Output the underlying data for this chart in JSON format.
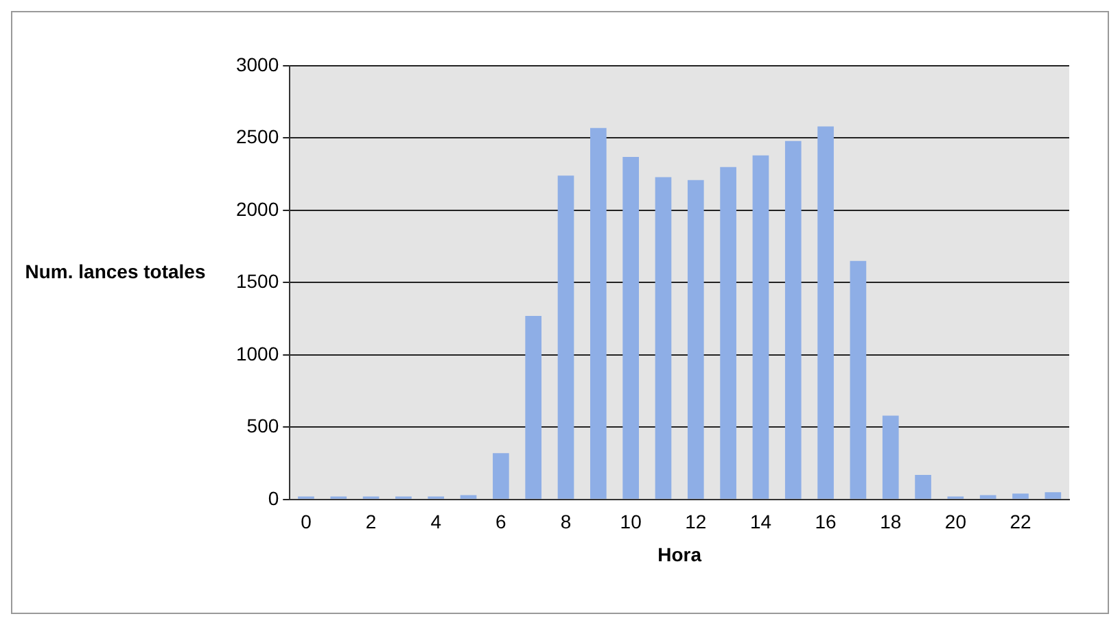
{
  "chart_data": {
    "type": "bar",
    "xlabel": "Hora",
    "ylabel": "Num. lances totales",
    "categories": [
      "0",
      null,
      "2",
      null,
      "4",
      null,
      "6",
      null,
      "8",
      null,
      "10",
      null,
      "12",
      null,
      "14",
      null,
      "16",
      null,
      "18",
      null,
      "20",
      null,
      "22",
      null
    ],
    "values": [
      20,
      20,
      20,
      20,
      20,
      30,
      320,
      1270,
      2240,
      2570,
      2370,
      2230,
      2210,
      2300,
      2380,
      2480,
      2580,
      1650,
      580,
      170,
      20,
      30,
      40,
      50
    ],
    "color": "#8eaee6",
    "ylim": [
      0,
      3000
    ],
    "yticks": [
      0,
      500,
      1000,
      1500,
      2000,
      2500,
      3000
    ],
    "grid": "y"
  }
}
